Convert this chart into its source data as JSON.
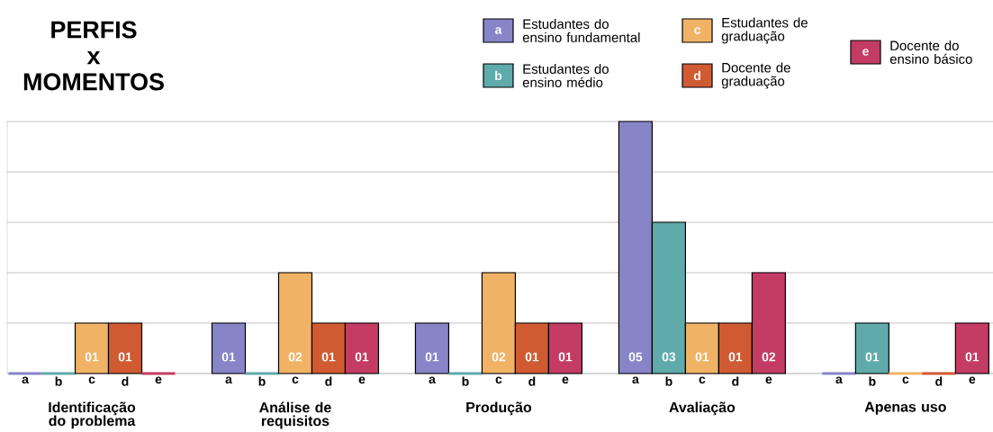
{
  "chart_data": {
    "type": "bar",
    "title": "PERFIS x MOMENTOS",
    "categories": [
      "Identificação do problema",
      "Análise de requisitos",
      "Produção",
      "Avaliação",
      "Apenas uso"
    ],
    "series": [
      {
        "name": "Estudantes do ensino fundamental",
        "color": "#8785c8",
        "values": [
          0,
          1,
          1,
          5,
          0
        ],
        "value_labels": [
          null,
          "01",
          "01",
          "05",
          null
        ]
      },
      {
        "name": "Estudantes do ensino médio",
        "color": "#5faaaa",
        "values": [
          0,
          0,
          0,
          3,
          1
        ],
        "value_labels": [
          null,
          null,
          null,
          "03",
          "01"
        ]
      },
      {
        "name": "Estudantes de graduação",
        "color": "#f0b366",
        "values": [
          1,
          2,
          2,
          1,
          0
        ],
        "value_labels": [
          "01",
          "02",
          "02",
          "01",
          null
        ]
      },
      {
        "name": "Docente de graduação",
        "color": "#d05b33",
        "values": [
          1,
          1,
          1,
          1,
          0
        ],
        "value_labels": [
          "01",
          "01",
          "01",
          "01",
          null
        ]
      },
      {
        "name": "Docente do ensino básico",
        "color": "#c43c64",
        "values": [
          0,
          1,
          1,
          2,
          1
        ],
        "value_labels": [
          null,
          "01",
          "01",
          "02",
          "01"
        ]
      }
    ],
    "annotations": [
      "a",
      "b",
      "c",
      "d",
      "e"
    ],
    "ylim": [
      0,
      5
    ],
    "yticks": [
      {
        "value": 0,
        "label": null
      },
      {
        "value": 1,
        "label": null
      },
      {
        "value": 2,
        "label": null
      },
      {
        "value": 3,
        "label": null
      },
      {
        "value": 4,
        "label": null
      },
      {
        "value": 5,
        "label": null
      }
    ],
    "grid": "y",
    "legend": "top right"
  }
}
